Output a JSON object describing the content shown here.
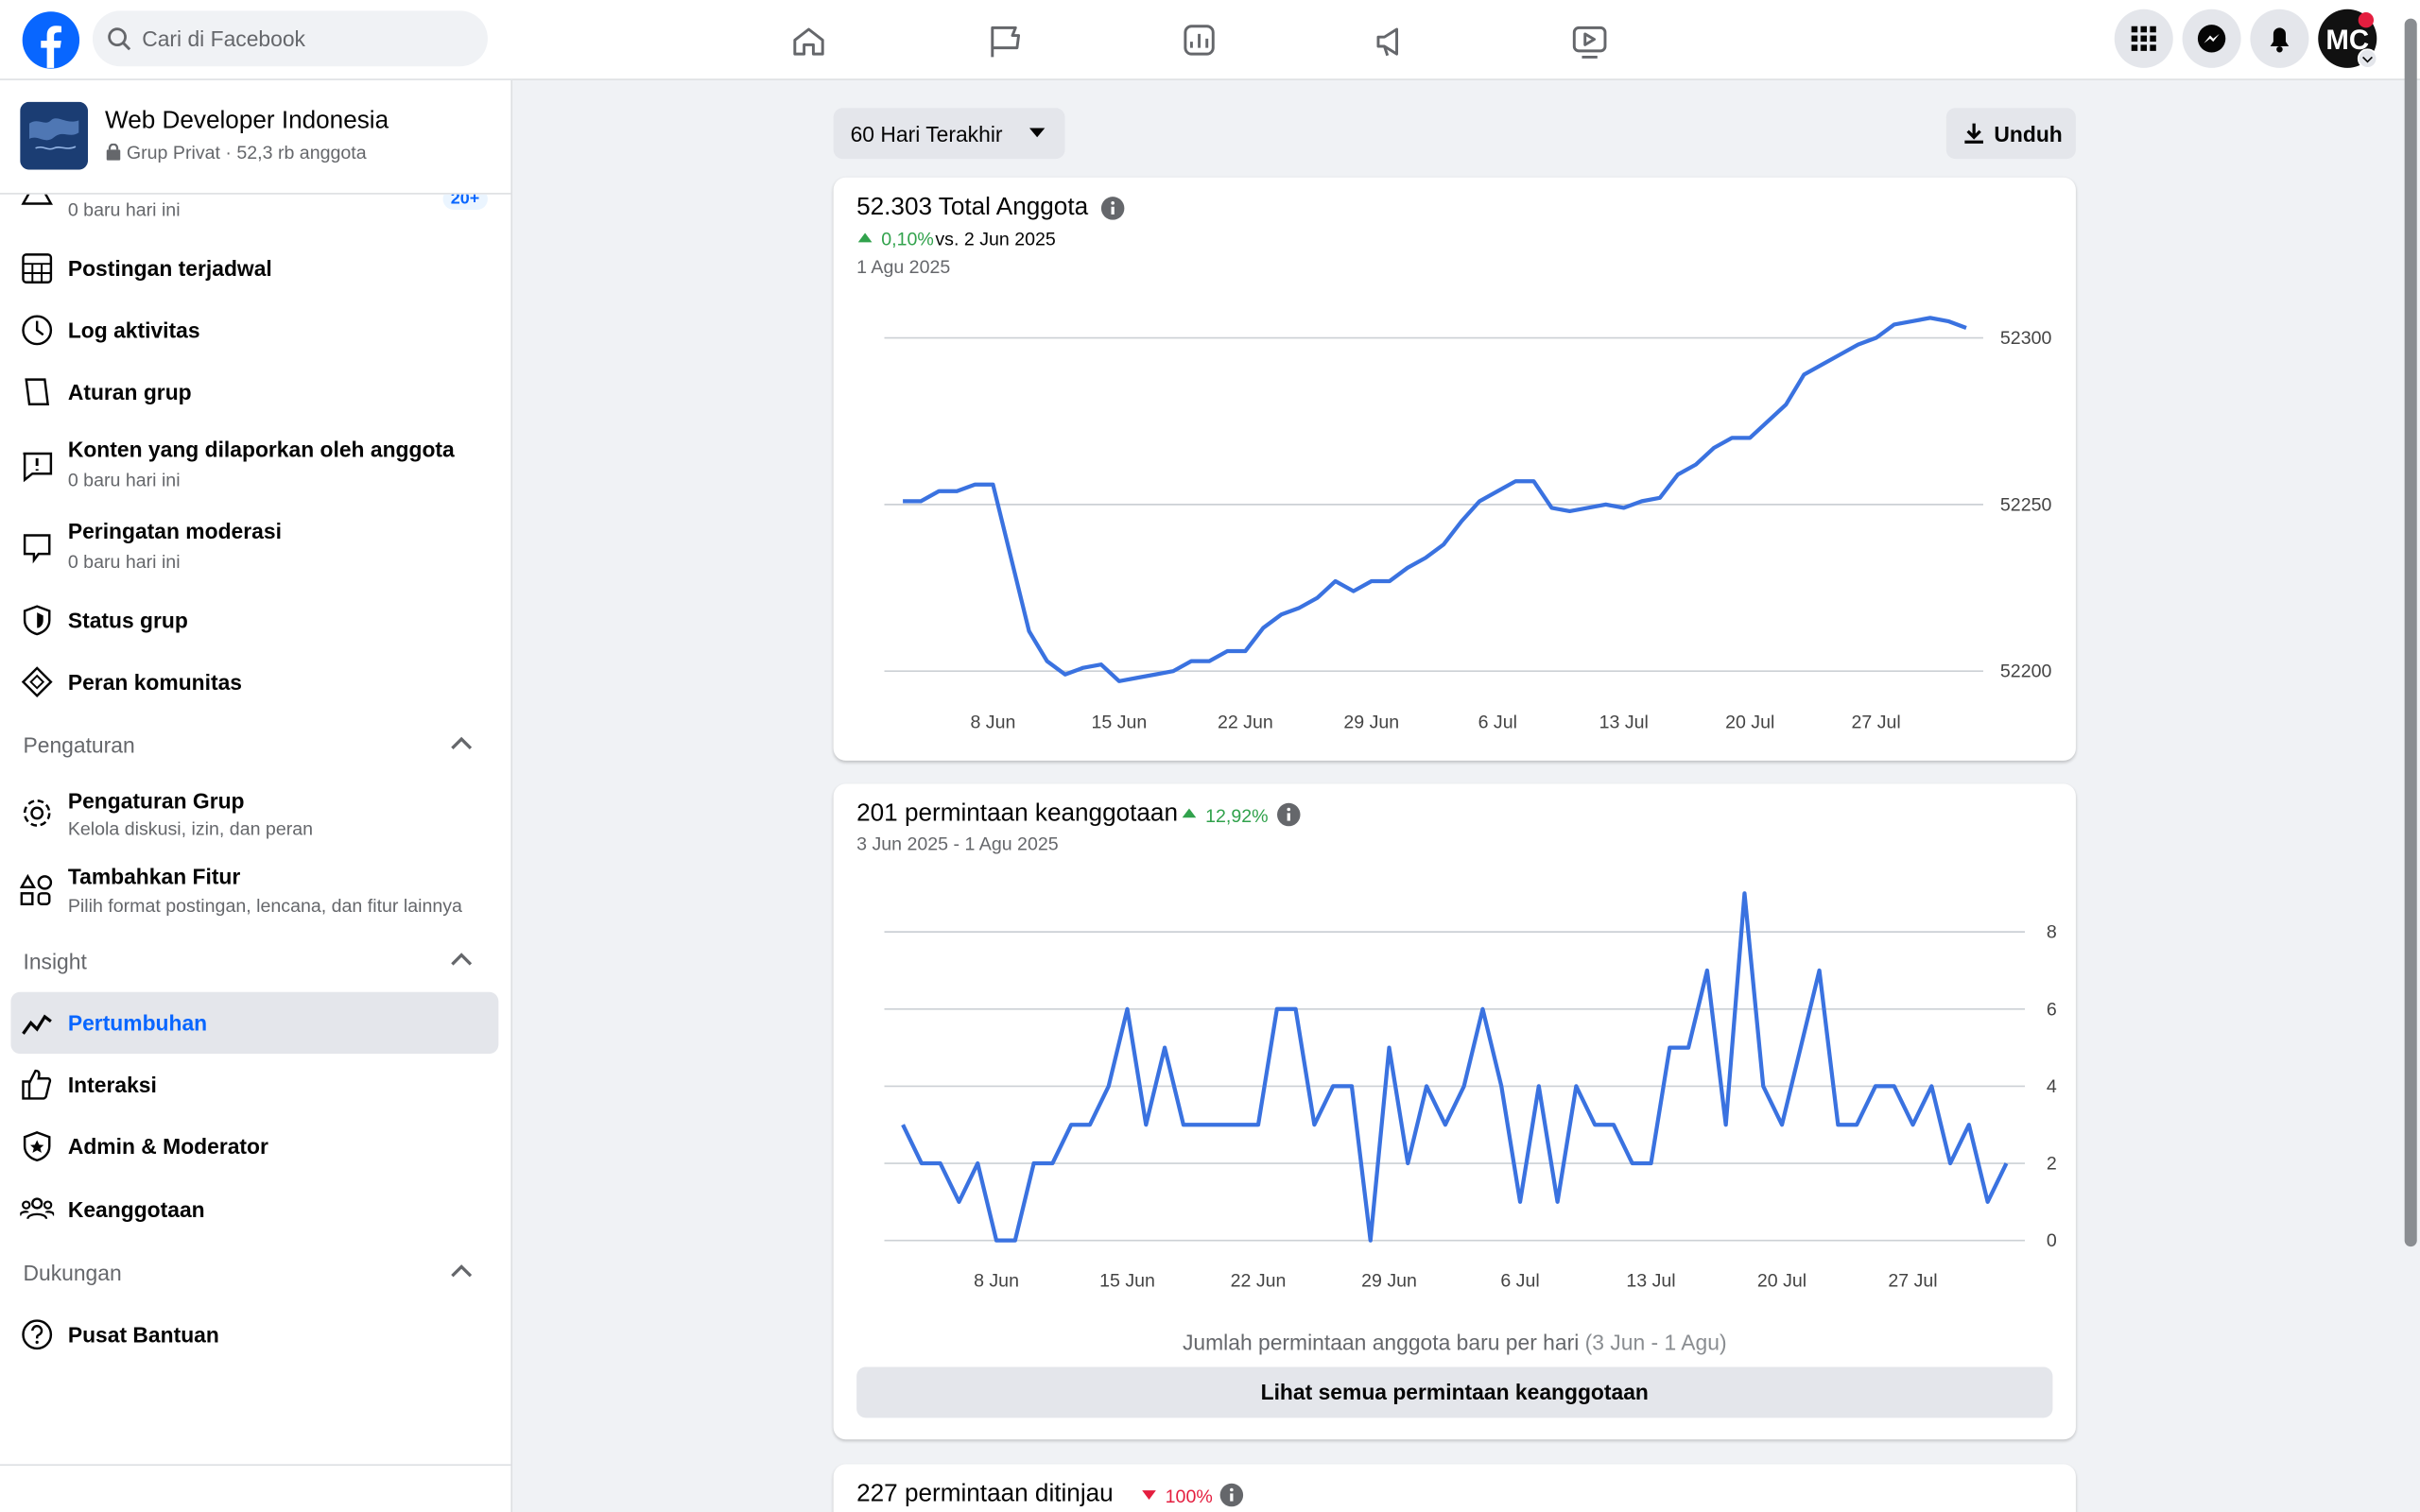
{
  "header": {
    "search_placeholder": "Cari di Facebook",
    "avatar": "MC"
  },
  "group": {
    "name": "Web Developer Indonesia",
    "meta": "Grup Privat · 52,3 rb anggota"
  },
  "sidebar": {
    "partial": {
      "sub": "0 baru hari ini",
      "badge": "20+"
    },
    "groups": [
      {
        "items": [
          {
            "label": "Postingan terjadwal"
          },
          {
            "label": "Log aktivitas"
          },
          {
            "label": "Aturan grup"
          },
          {
            "label": "Konten yang dilaporkan oleh anggota",
            "sub": "0 baru hari ini"
          },
          {
            "label": "Peringatan moderasi",
            "sub": "0 baru hari ini"
          },
          {
            "label": "Status grup"
          },
          {
            "label": "Peran komunitas"
          }
        ]
      },
      {
        "heading": "Pengaturan",
        "items": [
          {
            "label": "Pengaturan Grup",
            "sub": "Kelola diskusi, izin, dan peran"
          },
          {
            "label": "Tambahkan Fitur",
            "sub": "Pilih format postingan, lencana, dan fitur lainnya"
          }
        ]
      },
      {
        "heading": "Insight",
        "items": [
          {
            "label": "Pertumbuhan"
          },
          {
            "label": "Interaksi"
          },
          {
            "label": "Admin & Moderator"
          },
          {
            "label": "Keanggotaan"
          }
        ]
      },
      {
        "heading": "Dukungan",
        "items": [
          {
            "label": "Pusat Bantuan"
          }
        ]
      }
    ]
  },
  "toolbar": {
    "range": "60 Hari Terakhir",
    "download": "Unduh"
  },
  "cards": [
    {
      "title": "52.303 Total Anggota",
      "change": "0,10%",
      "change_note": "vs. 2 Jun 2025",
      "date": "1 Agu 2025"
    },
    {
      "title": "201 permintaan keanggotaan",
      "change": "12,92%",
      "date": "3 Jun 2025 - 1 Agu 2025",
      "caption": "Jumlah permintaan anggota baru per hari",
      "caption_range": "(3 Jun - 1 Agu)",
      "button": "Lihat semua permintaan keanggotaan"
    },
    {
      "title": "227 permintaan ditinjau",
      "change": "100%"
    }
  ],
  "chart_data": [
    {
      "type": "line",
      "color": "#3a72e0",
      "grid": true,
      "categories": [
        null,
        null,
        null,
        null,
        null,
        "8 Jun",
        null,
        null,
        null,
        null,
        null,
        null,
        "15 Jun",
        null,
        null,
        null,
        null,
        null,
        null,
        "22 Jun",
        null,
        null,
        null,
        null,
        null,
        null,
        "29 Jun",
        null,
        null,
        null,
        null,
        null,
        null,
        "6 Jul",
        null,
        null,
        null,
        null,
        null,
        null,
        "13 Jul",
        null,
        null,
        null,
        null,
        null,
        null,
        "20 Jul",
        null,
        null,
        null,
        null,
        null,
        null,
        "27 Jul",
        null,
        null,
        null,
        null,
        null
      ],
      "values": [
        52251,
        52251,
        52254,
        52254,
        52256,
        52256,
        52234,
        52212,
        52203,
        52199,
        52201,
        52202,
        52197,
        52198,
        52199,
        52200,
        52203,
        52203,
        52206,
        52206,
        52213,
        52217,
        52219,
        52222,
        52227,
        52224,
        52227,
        52227,
        52231,
        52234,
        52238,
        52245,
        52251,
        52254,
        52257,
        52257,
        52249,
        52248,
        52249,
        52250,
        52249,
        52251,
        52252,
        52259,
        52262,
        52267,
        52270,
        52270,
        52275,
        52280,
        52289,
        52292,
        52295,
        52298,
        52300,
        52304,
        52305,
        52306,
        52305,
        52303
      ],
      "ylim": [
        52190,
        52310
      ],
      "yticks": [
        52200,
        52250,
        52300
      ]
    },
    {
      "type": "line",
      "color": "#3a72e0",
      "grid": true,
      "categories": [
        null,
        null,
        null,
        null,
        null,
        "8 Jun",
        null,
        null,
        null,
        null,
        null,
        null,
        "15 Jun",
        null,
        null,
        null,
        null,
        null,
        null,
        "22 Jun",
        null,
        null,
        null,
        null,
        null,
        null,
        "29 Jun",
        null,
        null,
        null,
        null,
        null,
        null,
        "6 Jul",
        null,
        null,
        null,
        null,
        null,
        null,
        "13 Jul",
        null,
        null,
        null,
        null,
        null,
        null,
        "20 Jul",
        null,
        null,
        null,
        null,
        null,
        null,
        "27 Jul",
        null,
        null,
        null,
        null,
        null
      ],
      "values": [
        3,
        2,
        2,
        1,
        2,
        0,
        0,
        2,
        2,
        3,
        3,
        4,
        6,
        3,
        5,
        3,
        3,
        3,
        3,
        3,
        6,
        6,
        3,
        4,
        4,
        0,
        5,
        2,
        4,
        3,
        4,
        6,
        4,
        1,
        4,
        1,
        4,
        3,
        3,
        2,
        2,
        5,
        5,
        7,
        3,
        9,
        4,
        3,
        5,
        7,
        3,
        3,
        4,
        4,
        3,
        4,
        2,
        3,
        1,
        2
      ],
      "ylim": [
        0,
        9
      ],
      "yticks": [
        0,
        2,
        4,
        6,
        8
      ]
    }
  ]
}
